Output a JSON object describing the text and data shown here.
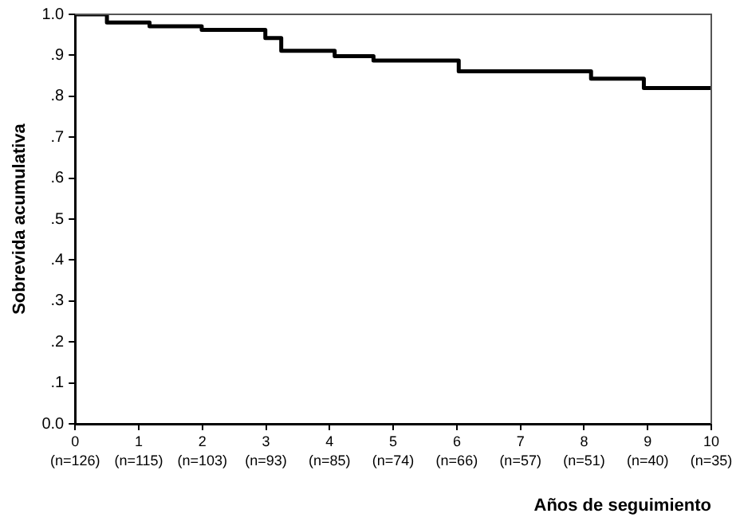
{
  "chart_data": {
    "type": "step",
    "xlabel": "Años de seguimiento",
    "ylabel": "Sobrevida acumulativa",
    "x": [
      0,
      0.5,
      1.17,
      1.99,
      2.99,
      3.24,
      4.08,
      4.69,
      6.03,
      8.11,
      8.94,
      10
    ],
    "series": [
      {
        "color": "#000000",
        "values": [
          1.0,
          0.98,
          0.971,
          0.962,
          0.942,
          0.911,
          0.898,
          0.887,
          0.861,
          0.843,
          0.82,
          0.82
        ]
      }
    ],
    "xlim": [
      0,
      10
    ],
    "ylim": [
      0,
      1
    ],
    "xticks": [
      0,
      1,
      2,
      3,
      4,
      5,
      6,
      7,
      8,
      9,
      10
    ],
    "annotations": [
      "(n=126)",
      "(n=115)",
      "(n=103)",
      "(n=93)",
      "(n=85)",
      "(n=74)",
      "(n=66)",
      "(n=57)",
      "(n=51)",
      "(n=40)",
      "(n=35)"
    ],
    "yticks": [
      {
        "value": 0,
        "label": "0.0"
      },
      {
        "value": 0.1,
        "label": ".1"
      },
      {
        "value": 0.2,
        "label": ".2"
      },
      {
        "value": 0.3,
        "label": ".3"
      },
      {
        "value": 0.4,
        "label": ".4"
      },
      {
        "value": 0.5,
        "label": ".5"
      },
      {
        "value": 0.6,
        "label": ".6"
      },
      {
        "value": 0.7,
        "label": ".7"
      },
      {
        "value": 0.8,
        "label": ".8"
      },
      {
        "value": 0.9,
        "label": ".9"
      },
      {
        "value": 1,
        "label": "1.0"
      }
    ],
    "grid": false,
    "legend": false,
    "marker": "none",
    "line_style": "solid"
  }
}
